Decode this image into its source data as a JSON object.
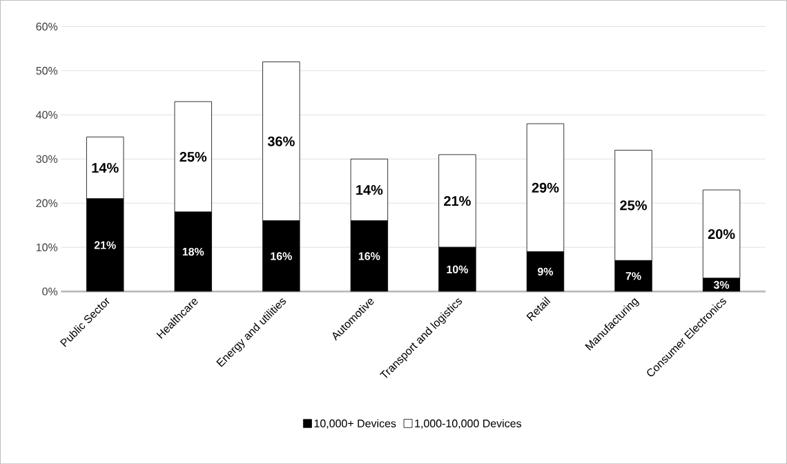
{
  "chart_data": {
    "type": "bar",
    "stacked": true,
    "categories": [
      "Public Sector",
      "Healthcare",
      "Energy and utilities",
      "Automotive",
      "Transport and logistics",
      "Retail",
      "Manufacturing",
      "Consumer Electronics"
    ],
    "series": [
      {
        "name": "10,000+ Devices",
        "color": "#000000",
        "values": [
          21,
          18,
          16,
          16,
          10,
          9,
          7,
          3
        ],
        "value_labels": [
          "21%",
          "18%",
          "16%",
          "16%",
          "10%",
          "9%",
          "7%",
          "3%"
        ]
      },
      {
        "name": "1,000-10,000 Devices",
        "color": "#ffffff",
        "values": [
          14,
          25,
          36,
          14,
          21,
          29,
          25,
          20
        ],
        "value_labels": [
          "14%",
          "25%",
          "36%",
          "14%",
          "21%",
          "29%",
          "25%",
          "20%"
        ]
      }
    ],
    "ylim": [
      0,
      60
    ],
    "yticks": [
      {
        "value": 0,
        "label": "0%"
      },
      {
        "value": 10,
        "label": "10%"
      },
      {
        "value": 20,
        "label": "20%"
      },
      {
        "value": 30,
        "label": "30%"
      },
      {
        "value": 40,
        "label": "40%"
      },
      {
        "value": 50,
        "label": "50%"
      },
      {
        "value": 60,
        "label": "60%"
      }
    ],
    "grid": "y",
    "legend": "bottom"
  }
}
